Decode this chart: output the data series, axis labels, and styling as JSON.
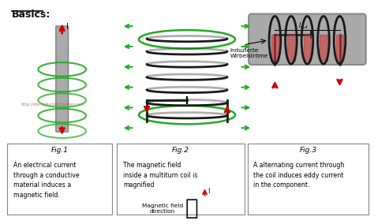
{
  "title": "Basics:",
  "background_color": "#ffffff",
  "fig1_label": "Fig.1",
  "fig1_text": "An electrical current\nthrough a conductive\nmaterial induces a\nmagnetic field.",
  "fig2_label": "Fig.2",
  "fig2_text": "The magnetic field\ninside a multiturn coil is\nmagnified",
  "fig3_label": "Fig.3",
  "fig3_text": "A alternating current through\nthe coil induces eddy current\nin the component.",
  "watermark": "http://dw-inductionheater.com",
  "fig3_german": "induzierte\nWirbelströme",
  "bottom_label": "Magnetic field\ndirection",
  "coil_color": "#1a1a1a",
  "arrow_green": "#00aa00",
  "arrow_red": "#cc0000",
  "field_green": "#22aa22",
  "cylinder_gray": "#aaaaaa",
  "cylinder_dark": "#888888",
  "box_border": "#888888",
  "text_color": "#111111"
}
